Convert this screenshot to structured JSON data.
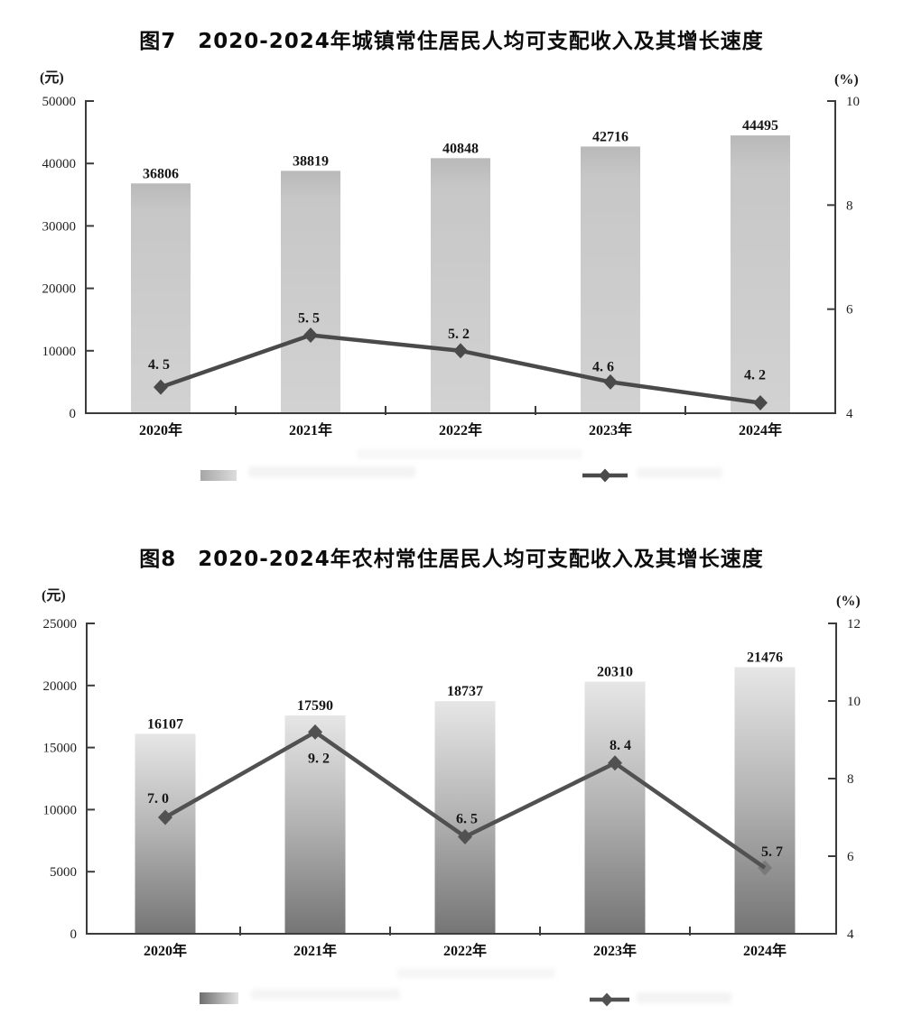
{
  "document": {
    "background": "#ffffff"
  },
  "chart_data": [
    {
      "type": "bar",
      "subtype": "bar-with-line-overlay",
      "figure_label": "图7",
      "title": "图7　2020-2024年城镇常住居民人均可支配收入及其增长速度",
      "left_unit": "(元)",
      "right_unit": "(%)",
      "categories": [
        "2020年",
        "2021年",
        "2022年",
        "2023年",
        "2024年"
      ],
      "series": [
        {
          "id": "income-bars",
          "type": "bar",
          "axis": "left",
          "values": [
            36806,
            38819,
            40848,
            42716,
            44495
          ],
          "labels": [
            "36806",
            "38819",
            "40848",
            "42716",
            "44495"
          ]
        },
        {
          "id": "growth-line",
          "type": "line",
          "axis": "right",
          "values": [
            4.5,
            5.5,
            5.2,
            4.6,
            4.2
          ],
          "labels": [
            "4. 5",
            "5. 5",
            "5. 2",
            "4. 6",
            "4. 2"
          ]
        }
      ],
      "left_axis": {
        "min": 0,
        "max": 50000,
        "step": 10000
      },
      "right_axis": {
        "min": 4,
        "max": 10,
        "step": 2
      },
      "grid": false,
      "legend": {
        "bar_swatch": true,
        "line_marker": true,
        "text_legible": false
      },
      "colors": {
        "axis": "#3c3c3c",
        "line": "#4a4a4a",
        "bar_gradient": [
          {
            "offset": "0%",
            "color": "#b9b9b9"
          },
          {
            "offset": "12%",
            "color": "#c7c7c7"
          },
          {
            "offset": "100%",
            "color": "#d2d2d2"
          }
        ],
        "legend_gradient": [
          "#a6a6a6",
          "#dcdcdc"
        ]
      }
    },
    {
      "type": "bar",
      "subtype": "bar-with-line-overlay",
      "figure_label": "图8",
      "title": "图8　2020-2024年农村常住居民人均可支配收入及其增长速度",
      "left_unit": "(元)",
      "right_unit": "(%)",
      "categories": [
        "2020年",
        "2021年",
        "2022年",
        "2023年",
        "2024年"
      ],
      "series": [
        {
          "id": "income-bars",
          "type": "bar",
          "axis": "left",
          "values": [
            16107,
            17590,
            18737,
            20310,
            21476
          ],
          "labels": [
            "16107",
            "17590",
            "18737",
            "20310",
            "21476"
          ]
        },
        {
          "id": "growth-line",
          "type": "line",
          "axis": "right",
          "values": [
            7.0,
            9.2,
            6.5,
            8.4,
            5.7
          ],
          "labels": [
            "7. 0",
            "9. 2",
            "6. 5",
            "8. 4",
            "5. 7"
          ]
        }
      ],
      "left_axis": {
        "min": 0,
        "max": 25000,
        "step": 5000
      },
      "right_axis": {
        "min": 4,
        "max": 12,
        "step": 2
      },
      "grid": false,
      "legend": {
        "bar_swatch": true,
        "line_marker": true,
        "text_legible": false
      },
      "colors": {
        "axis": "#3c3c3c",
        "line": "#515151",
        "bar_gradient": [
          {
            "offset": "0%",
            "color": "#e6e6e6"
          },
          {
            "offset": "50%",
            "color": "#b2b2b2"
          },
          {
            "offset": "100%",
            "color": "#757575"
          }
        ],
        "legend_gradient": [
          "#6e6e6e",
          "#e2e2e2"
        ]
      }
    }
  ]
}
